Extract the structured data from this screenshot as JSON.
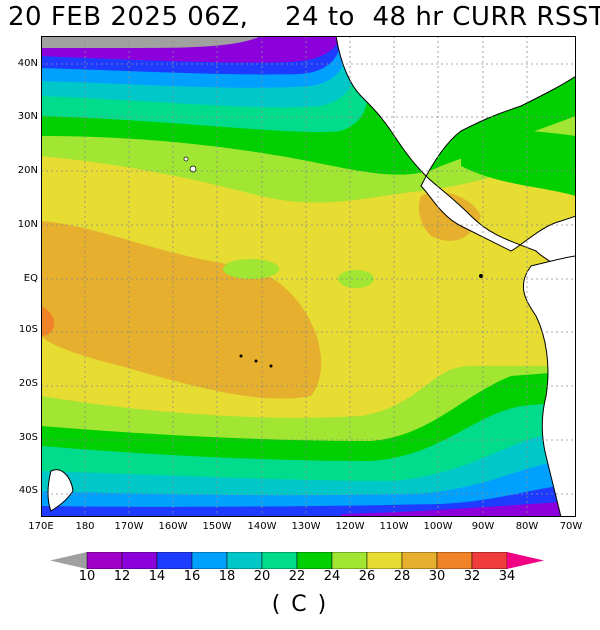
{
  "title": {
    "date": "20 FEB 2025 06Z,",
    "range": "24 to  48 hr CURR RSST"
  },
  "map": {
    "lat_labels": [
      "40N",
      "30N",
      "20N",
      "10N",
      "EQ",
      "10S",
      "20S",
      "30S",
      "40S"
    ],
    "lon_labels": [
      "170E",
      "180",
      "170W",
      "160W",
      "150W",
      "140W",
      "130W",
      "120W",
      "110W",
      "100W",
      "90W",
      "80W",
      "70W"
    ]
  },
  "colorbar": {
    "values": [
      "10",
      "12",
      "14",
      "16",
      "18",
      "20",
      "22",
      "24",
      "26",
      "28",
      "30",
      "32",
      "34"
    ],
    "colors": [
      "#a0a0a0",
      "#a000c8",
      "#8c00dc",
      "#1e3cff",
      "#00a0ff",
      "#00c8c8",
      "#00dc8c",
      "#00d000",
      "#a0e632",
      "#e6dc32",
      "#e6af2d",
      "#f08228",
      "#f03c3c",
      "#f00082"
    ],
    "units": "( C )"
  },
  "colors": {
    "land": "#ffffff",
    "coast": "#000000",
    "grid": "#8c8c8c"
  }
}
